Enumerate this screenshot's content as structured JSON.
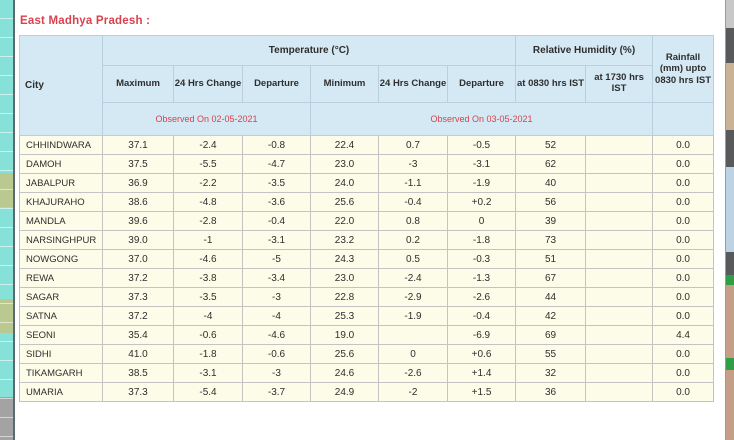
{
  "page": {
    "title": "East Madhya Pradesh :"
  },
  "colors": {
    "title_red": "#d9414d",
    "header_blue": "#d4e9f3",
    "row_ivory": "#fdfce9",
    "left_strip_teal": "#86e2d8",
    "left_strip_olive": "#b9c98f",
    "edge_dark_gray": "#58595b"
  },
  "table": {
    "header": {
      "city": "City",
      "temperature_group": "Temperature (°C)",
      "humidity_group": "Relative Humidity (%)",
      "rainfall": "Rainfall (mm) upto 0830 hrs IST",
      "sub": [
        "Maximum",
        "24 Hrs Change",
        "Departure",
        "Minimum",
        "24 Hrs Change",
        "Departure",
        "at 0830 hrs IST",
        "at 1730 hrs IST"
      ],
      "observed_left": "Observed On 02-05-2021",
      "observed_right": "Observed On 03-05-2021"
    },
    "rows": [
      [
        "CHHINDWARA",
        "37.1",
        "-2.4",
        "-0.8",
        "22.4",
        "0.7",
        "-0.5",
        "52",
        "",
        "0.0"
      ],
      [
        "DAMOH",
        "37.5",
        "-5.5",
        "-4.7",
        "23.0",
        "-3",
        "-3.1",
        "62",
        "",
        "0.0"
      ],
      [
        "JABALPUR",
        "36.9",
        "-2.2",
        "-3.5",
        "24.0",
        "-1.1",
        "-1.9",
        "40",
        "",
        "0.0"
      ],
      [
        "KHAJURAHO",
        "38.6",
        "-4.8",
        "-3.6",
        "25.6",
        "-0.4",
        "+0.2",
        "56",
        "",
        "0.0"
      ],
      [
        "MANDLA",
        "39.6",
        "-2.8",
        "-0.4",
        "22.0",
        "0.8",
        "0",
        "39",
        "",
        "0.0"
      ],
      [
        "NARSINGHPUR",
        "39.0",
        "-1",
        "-3.1",
        "23.2",
        "0.2",
        "-1.8",
        "73",
        "",
        "0.0"
      ],
      [
        "NOWGONG",
        "37.0",
        "-4.6",
        "-5",
        "24.3",
        "0.5",
        "-0.3",
        "51",
        "",
        "0.0"
      ],
      [
        "REWA",
        "37.2",
        "-3.8",
        "-3.4",
        "23.0",
        "-2.4",
        "-1.3",
        "67",
        "",
        "0.0"
      ],
      [
        "SAGAR",
        "37.3",
        "-3.5",
        "-3",
        "22.8",
        "-2.9",
        "-2.6",
        "44",
        "",
        "0.0"
      ],
      [
        "SATNA",
        "37.2",
        "-4",
        "-4",
        "25.3",
        "-1.9",
        "-0.4",
        "42",
        "",
        "0.0"
      ],
      [
        "SEONI",
        "35.4",
        "-0.6",
        "-4.6",
        "19.0",
        "",
        "-6.9",
        "69",
        "",
        "4.4"
      ],
      [
        "SIDHI",
        "41.0",
        "-1.8",
        "-0.6",
        "25.6",
        "0",
        "+0.6",
        "55",
        "",
        "0.0"
      ],
      [
        "TIKAMGARH",
        "38.5",
        "-3.1",
        "-3",
        "24.6",
        "-2.6",
        "+1.4",
        "32",
        "",
        "0.0"
      ],
      [
        "UMARIA",
        "37.3",
        "-5.4",
        "-3.7",
        "24.9",
        "-2",
        "+1.5",
        "36",
        "",
        "0.0"
      ]
    ]
  },
  "chart_data": {
    "type": "table",
    "title": "East Madhya Pradesh :",
    "columns": [
      "City",
      "Temperature Maximum (°C)",
      "Temperature Max 24 Hrs Change",
      "Temperature Max Departure",
      "Temperature Minimum (°C)",
      "Temperature Min 24 Hrs Change",
      "Temperature Min Departure",
      "Relative Humidity at 0830 hrs IST (%)",
      "Relative Humidity at 1730 hrs IST (%)",
      "Rainfall (mm) upto 0830 hrs IST"
    ],
    "observed_dates": [
      "Observed On 02-05-2021",
      "Observed On 03-05-2021"
    ]
  }
}
